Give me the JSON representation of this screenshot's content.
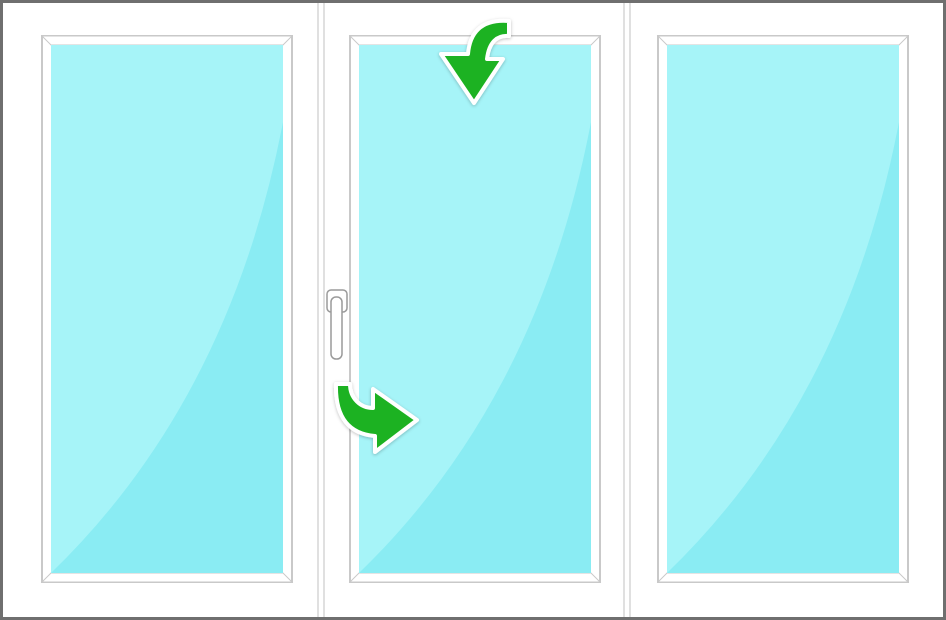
{
  "diagram": {
    "subject": "three-panel-window",
    "colors": {
      "outer_border": "#6f6f6f",
      "frame": "#ffffff",
      "frame_line": "#d6d6d6",
      "sash_line": "#c9c9c9",
      "glass_light": "#a6f4f8",
      "glass_dark": "#8aecf3",
      "arrow_fill": "#1db224",
      "arrow_stroke": "#ffffff",
      "handle": "#ffffff",
      "handle_stroke": "#9a9a9a"
    },
    "panels": [
      {
        "id": "left",
        "type": "fixed"
      },
      {
        "id": "center",
        "type": "tilt-and-turn",
        "icons": [
          "tilt-arrow-icon",
          "turn-arrow-icon",
          "handle-icon"
        ]
      },
      {
        "id": "right",
        "type": "fixed"
      }
    ]
  }
}
